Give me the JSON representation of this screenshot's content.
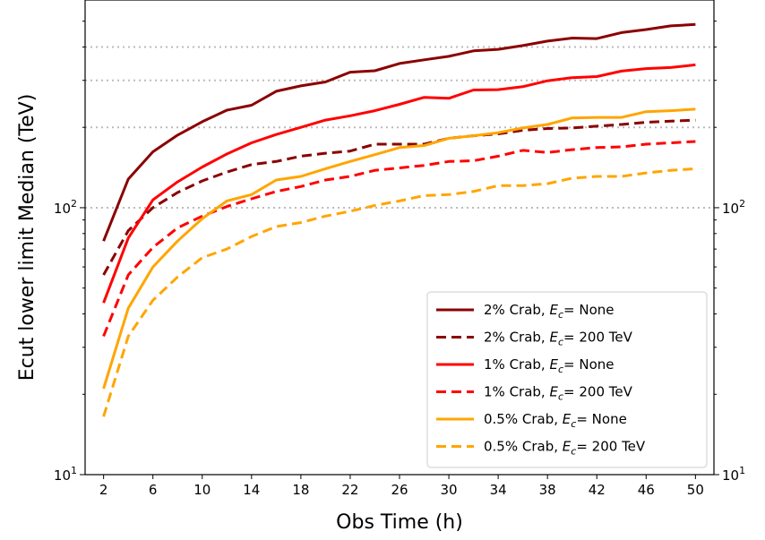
{
  "chart_data": {
    "type": "line",
    "xlabel": "Obs Time (h)",
    "ylabel": "Ecut lower limit Median (TeV)",
    "y_scale": "log",
    "xlim": [
      0.5,
      51.5
    ],
    "ylim": [
      10,
      600
    ],
    "x_ticks": [
      2,
      6,
      10,
      14,
      18,
      22,
      26,
      30,
      34,
      38,
      42,
      46,
      50
    ],
    "y_ticks": [
      {
        "value": 10,
        "base": "10",
        "exp": "1"
      },
      {
        "value": 100,
        "base": "10",
        "exp": "2"
      }
    ],
    "right_axis_ticks": [
      {
        "value": 10,
        "base": "10",
        "exp": "1"
      },
      {
        "value": 100,
        "base": "10",
        "exp": "2"
      }
    ],
    "reference_lines": [
      100,
      200,
      300,
      400
    ],
    "legend_position": "lower-right",
    "x": [
      2,
      4,
      6,
      8,
      10,
      12,
      14,
      16,
      18,
      20,
      22,
      24,
      26,
      28,
      30,
      32,
      34,
      36,
      38,
      40,
      42,
      44,
      46,
      48,
      50
    ],
    "series": [
      {
        "name_prefix": "2% Crab, ",
        "name_suffix": "= None",
        "color": "#8b0000",
        "dash": "solid",
        "values": [
          75,
          128,
          162,
          187,
          210,
          232,
          242,
          273,
          286,
          296,
          322,
          326,
          347,
          358,
          369,
          387,
          392,
          405,
          421,
          432,
          430,
          453,
          465,
          480,
          486
        ]
      },
      {
        "name_prefix": "2% Crab, ",
        "name_suffix": "= 200 TeV",
        "color": "#8b0000",
        "dash": "dashed",
        "values": [
          56,
          82,
          100,
          114,
          126,
          136,
          145,
          149,
          156,
          160,
          163,
          173,
          173,
          173,
          182,
          186,
          189,
          195,
          198,
          199,
          202,
          205,
          209,
          211,
          213
        ]
      },
      {
        "name_prefix": "1% Crab, ",
        "name_suffix": "= None",
        "color": "#ff0000",
        "dash": "solid",
        "values": [
          44,
          77,
          107,
          125,
          142,
          159,
          175,
          188,
          200,
          213,
          221,
          231,
          244,
          259,
          257,
          276,
          277,
          284,
          299,
          307,
          310,
          325,
          332,
          335,
          343
        ]
      },
      {
        "name_prefix": "1% Crab, ",
        "name_suffix": "= 200 TeV",
        "color": "#ff0000",
        "dash": "dashed",
        "values": [
          33,
          56,
          71,
          84,
          93,
          101,
          108,
          115,
          120,
          127,
          131,
          138,
          141,
          144,
          149,
          150,
          156,
          164,
          161,
          165,
          168,
          169,
          173,
          175,
          177
        ]
      },
      {
        "name_prefix": "0.5% Crab, ",
        "name_suffix": "= None",
        "color": "#ffa500",
        "dash": "solid",
        "values": [
          21,
          42,
          60,
          75,
          91,
          106,
          112,
          127,
          131,
          140,
          149,
          158,
          168,
          171,
          182,
          186,
          191,
          199,
          205,
          217,
          218,
          218,
          229,
          231,
          234
        ]
      },
      {
        "name_prefix": "0.5% Crab, ",
        "name_suffix": "= 200 TeV",
        "color": "#ffa500",
        "dash": "dashed",
        "values": [
          16.5,
          33,
          45,
          55,
          65,
          70,
          78,
          85,
          88,
          93,
          97,
          102,
          106,
          111,
          112,
          115,
          121,
          121,
          123,
          129,
          131,
          131,
          135,
          138,
          140
        ]
      }
    ]
  }
}
